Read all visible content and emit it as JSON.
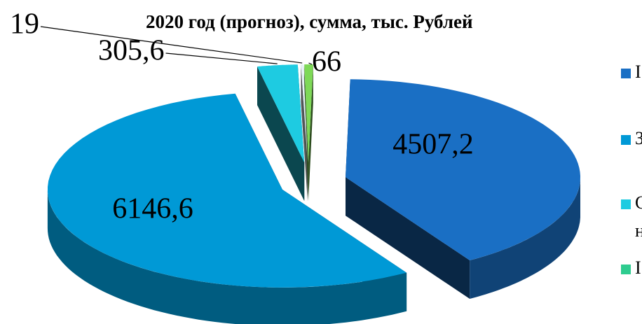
{
  "chart_data": {
    "type": "pie3d",
    "title": "2020 год (прогноз), сумма, тыс. Рублей",
    "categories": [
      "I",
      "З",
      [
        "С",
        "н"
      ],
      null,
      "I"
    ],
    "values": [
      4507.2,
      6146.6,
      305.6,
      19,
      66
    ],
    "value_labels": [
      "4507,2",
      "6146,6",
      "305,6",
      "19",
      "66"
    ],
    "colors": [
      "#1a6fc4",
      "#0099d6",
      "#1ecbe1",
      "#e6f3f7",
      "#7ed957"
    ],
    "legend_colors": [
      "#1a6fc4",
      "#0099d6",
      "#1ecbe1",
      null,
      "#2ecc8f"
    ]
  }
}
